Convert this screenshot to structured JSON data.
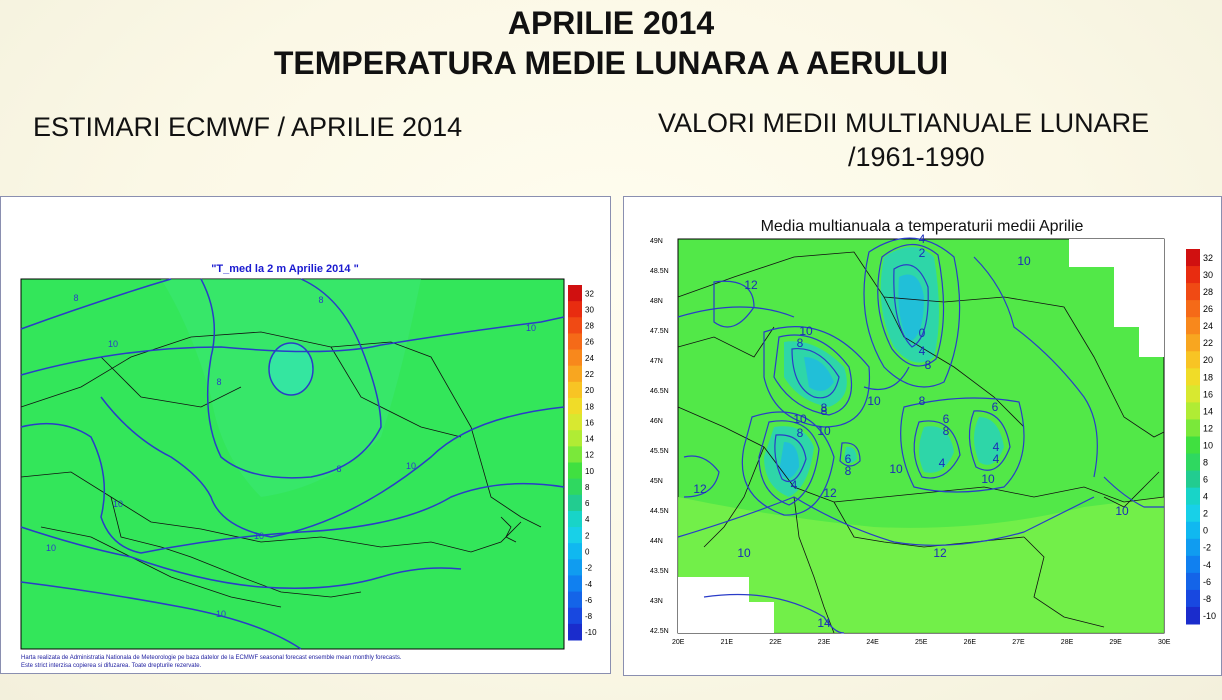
{
  "header": {
    "title_line1": "APRILIE 2014",
    "title_line2": "TEMPERATURA MEDIE LUNARA A AERULUI"
  },
  "left_panel": {
    "subtitle": "ESTIMARI ECMWF / APRILIE 2014",
    "map_title": "\"T_med la 2 m Aprilie 2014 \"",
    "footnote_line1": "Harta realizata de Administratia Nationala de Meteorologie pe baza datelor de la ECMWF seasonal forecast ensemble mean monthly forecasts.",
    "footnote_line2": "Este strict interzisa copierea si difuzarea. Toate drepturile rezervate.",
    "colorbar_labels": [
      "32",
      "30",
      "28",
      "26",
      "24",
      "22",
      "20",
      "18",
      "16",
      "14",
      "12",
      "10",
      "8",
      "6",
      "4",
      "2",
      "0",
      "-2",
      "-4",
      "-6",
      "-8",
      "-10"
    ],
    "contour_labels": [
      "8",
      "8",
      "10",
      "10",
      "8",
      "8",
      "10",
      "10",
      "10",
      "10",
      "10"
    ]
  },
  "right_panel": {
    "subtitle_line1": "VALORI MEDII MULTIANUALE LUNARE",
    "subtitle_line2": "/1961-1990",
    "map_title": "Media multianuala a temperaturii medii Aprilie",
    "lat_labels": [
      "49N",
      "48.5N",
      "48N",
      "47.5N",
      "47N",
      "46.5N",
      "46N",
      "45.5N",
      "45N",
      "44.5N",
      "44N",
      "43.5N",
      "43N",
      "42.5N"
    ],
    "lon_labels": [
      "20E",
      "21E",
      "22E",
      "23E",
      "24E",
      "25E",
      "26E",
      "27E",
      "28E",
      "29E",
      "30E"
    ],
    "colorbar_labels": [
      "32",
      "30",
      "28",
      "26",
      "24",
      "22",
      "20",
      "18",
      "16",
      "14",
      "12",
      "10",
      "8",
      "6",
      "4",
      "2",
      "0",
      "-2",
      "-4",
      "-6",
      "-8",
      "-10"
    ],
    "contour_labels": [
      "12",
      "10",
      "10",
      "8",
      "10",
      "8",
      "8",
      "10",
      "4",
      "8",
      "10",
      "2",
      "4",
      "0",
      "4",
      "8",
      "6",
      "8",
      "6",
      "4",
      "10",
      "12",
      "10",
      "12",
      "6",
      "8",
      "4",
      "10",
      "10",
      "12",
      "14",
      "4",
      "8"
    ]
  },
  "colors": {
    "land_green": "#2fe05a",
    "contour_blue": "#2a3cc8",
    "cyan_cold": "#19e0d0",
    "panel_border": "#8a8fb0"
  }
}
